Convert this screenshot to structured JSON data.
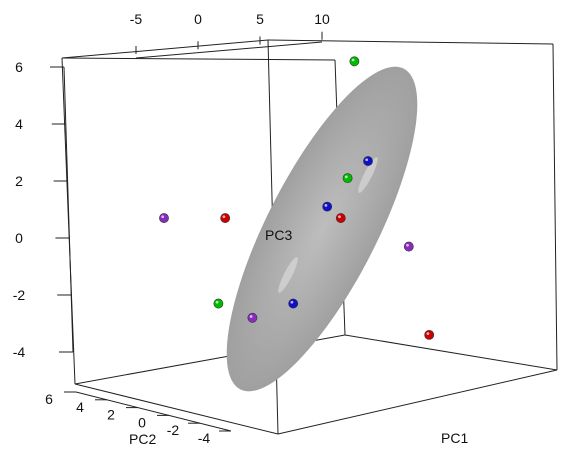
{
  "chart_data": {
    "type": "scatter",
    "projection": "3d",
    "axes": {
      "x": {
        "label": "PC1"
      },
      "y": {
        "label": "PC2",
        "ticks": [
          "6",
          "4",
          "2",
          "0",
          "-2",
          "-4"
        ]
      },
      "z": {
        "label": "PC3",
        "ticks": [
          "6",
          "4",
          "2",
          "0",
          "-2",
          "-4"
        ]
      },
      "top": {
        "ticks": [
          "-5",
          "0",
          "5",
          "10"
        ]
      }
    },
    "grid": false,
    "ellipsoid": {
      "color": "#a0a0a0"
    },
    "series": [
      {
        "color": "#00bb00",
        "points": [
          {
            "x": 11.5,
            "z": 6.2
          },
          {
            "x": 11.0,
            "z": 2.1
          },
          {
            "x": 1.5,
            "z": -2.3
          }
        ]
      },
      {
        "color": "#1010cc",
        "points": [
          {
            "x": 12.5,
            "z": 2.7
          },
          {
            "x": 9.5,
            "z": 1.1
          },
          {
            "x": 7.0,
            "z": -2.3
          }
        ]
      },
      {
        "color": "#cc0000",
        "points": [
          {
            "x": 2.0,
            "z": 0.7
          },
          {
            "x": 10.5,
            "z": 0.7
          },
          {
            "x": 17.0,
            "z": -3.4
          }
        ]
      },
      {
        "color": "#8a2bbf",
        "points": [
          {
            "x": -2.5,
            "z": 0.7
          },
          {
            "x": 15.5,
            "z": -0.3
          },
          {
            "x": 4.0,
            "z": -2.8
          }
        ]
      }
    ]
  }
}
